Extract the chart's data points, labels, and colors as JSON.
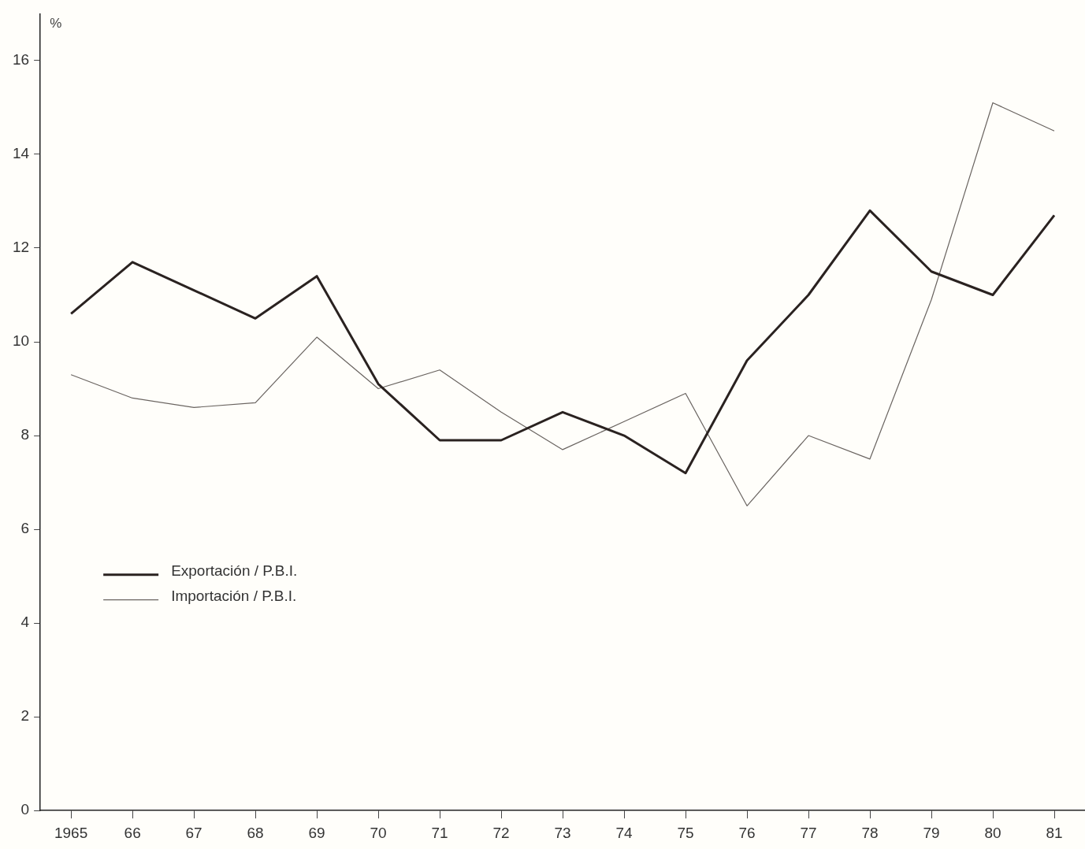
{
  "chart_data": {
    "type": "line",
    "ylabel": "%",
    "categories": [
      "1965",
      "66",
      "67",
      "68",
      "69",
      "70",
      "71",
      "72",
      "73",
      "74",
      "75",
      "76",
      "77",
      "78",
      "79",
      "80",
      "81"
    ],
    "series": [
      {
        "name": "Exportación / P.B.I.",
        "color": "#2a2220",
        "values": [
          10.6,
          11.7,
          11.1,
          10.5,
          11.4,
          9.1,
          7.9,
          7.9,
          8.5,
          8.0,
          7.2,
          9.6,
          11.0,
          12.8,
          11.5,
          11.0,
          12.7
        ]
      },
      {
        "name": "Importación / P.B.I.",
        "color": "#6a6460",
        "values": [
          9.3,
          8.8,
          8.6,
          8.7,
          10.1,
          9.0,
          9.4,
          8.5,
          7.7,
          8.3,
          8.9,
          6.5,
          8.0,
          7.5,
          10.9,
          15.1,
          14.5
        ]
      }
    ],
    "ylim": [
      0,
      17
    ],
    "yticks": [
      0,
      2,
      4,
      6,
      8,
      10,
      12,
      14,
      16
    ],
    "grid": false,
    "legend": "left",
    "marker": "none",
    "line_style": "solid"
  }
}
